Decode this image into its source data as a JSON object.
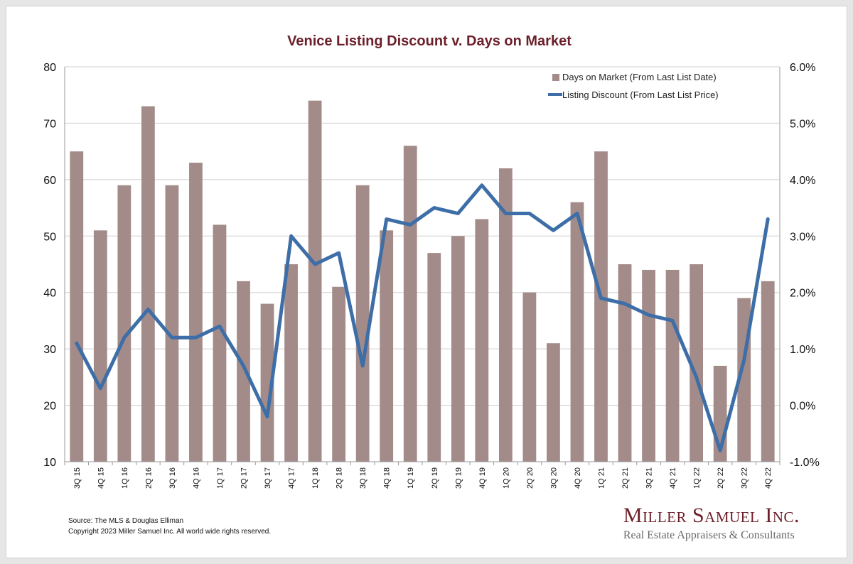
{
  "chart_data": {
    "type": "bar",
    "title": "Venice Listing Discount v. Days on Market",
    "categories": [
      "3Q 15",
      "4Q 15",
      "1Q 16",
      "2Q 16",
      "3Q 16",
      "4Q 16",
      "1Q 17",
      "2Q 17",
      "3Q 17",
      "4Q 17",
      "1Q 18",
      "2Q 18",
      "3Q 18",
      "4Q 18",
      "1Q 19",
      "2Q 19",
      "3Q 19",
      "4Q 19",
      "1Q 20",
      "2Q 20",
      "3Q 20",
      "4Q 20",
      "1Q 21",
      "2Q 21",
      "3Q 21",
      "4Q 21",
      "1Q 22",
      "2Q 22",
      "3Q 22",
      "4Q 22"
    ],
    "series": [
      {
        "name": "Days on Market (From Last List Date)",
        "type": "bar",
        "axis": "left",
        "color": "#a38b89",
        "values": [
          65,
          51,
          59,
          73,
          59,
          63,
          52,
          42,
          38,
          45,
          74,
          41,
          59,
          51,
          66,
          47,
          50,
          53,
          62,
          40,
          31,
          56,
          65,
          45,
          44,
          44,
          45,
          27,
          39,
          42
        ]
      },
      {
        "name": "Listing Discount (From Last List Price)",
        "type": "line",
        "axis": "right",
        "color": "#3e6ea7",
        "values": [
          1.1,
          0.3,
          1.2,
          1.7,
          1.2,
          1.2,
          1.4,
          0.7,
          -0.2,
          3.0,
          2.5,
          2.7,
          0.7,
          3.3,
          3.2,
          3.5,
          3.4,
          3.9,
          3.4,
          3.4,
          3.1,
          3.4,
          1.9,
          1.8,
          1.6,
          1.5,
          0.5,
          -0.8,
          0.8,
          3.3
        ]
      }
    ],
    "y_left": {
      "min": 10,
      "max": 80,
      "step": 10,
      "ticks": [
        "80",
        "70",
        "60",
        "50",
        "40",
        "30",
        "20",
        "10"
      ]
    },
    "y_right": {
      "min": -1.0,
      "max": 6.0,
      "step": 1.0,
      "ticks": [
        "6.0%",
        "5.0%",
        "4.0%",
        "3.0%",
        "2.0%",
        "1.0%",
        "0.0%",
        "-1.0%"
      ]
    },
    "grid": true,
    "legend_position": "top-right",
    "title_color": "#6b1f2a"
  },
  "footer": {
    "source": "Source: The MLS & Douglas Elliman",
    "copyright": "Copyright 2023 Miller Samuel Inc.  All world wide rights reserved."
  },
  "logo": {
    "name": "Miller Samuel Inc.",
    "tagline": "Real Estate Appraisers & Consultants"
  }
}
